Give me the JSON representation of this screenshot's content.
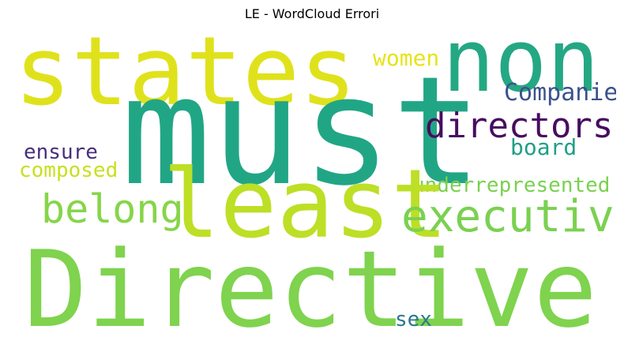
{
  "title": "LE - WordCloud Errori",
  "words": [
    {
      "id": "states",
      "text": "states",
      "color": "#dfe21b"
    },
    {
      "id": "non",
      "text": "non",
      "color": "#24a883"
    },
    {
      "id": "must",
      "text": "must",
      "color": "#21a685"
    },
    {
      "id": "women",
      "text": "women",
      "color": "#e6e419"
    },
    {
      "id": "companies",
      "text": "Companies",
      "color": "#3b528b"
    },
    {
      "id": "directors",
      "text": "directors",
      "color": "#470d60"
    },
    {
      "id": "ensure",
      "text": "ensure",
      "color": "#472f7d"
    },
    {
      "id": "board",
      "text": "board",
      "color": "#1fa088"
    },
    {
      "id": "composed",
      "text": "composed",
      "color": "#c8e020"
    },
    {
      "id": "underrepresented",
      "text": "underrepresented",
      "color": "#7ad151"
    },
    {
      "id": "least",
      "text": "least",
      "color": "#bddf26"
    },
    {
      "id": "belong",
      "text": "belong",
      "color": "#86d549"
    },
    {
      "id": "executive",
      "text": "executive",
      "color": "#7ad151"
    },
    {
      "id": "directive",
      "text": "Directive",
      "color": "#7fd34e"
    },
    {
      "id": "sex",
      "text": "sex",
      "color": "#2a788e"
    }
  ]
}
